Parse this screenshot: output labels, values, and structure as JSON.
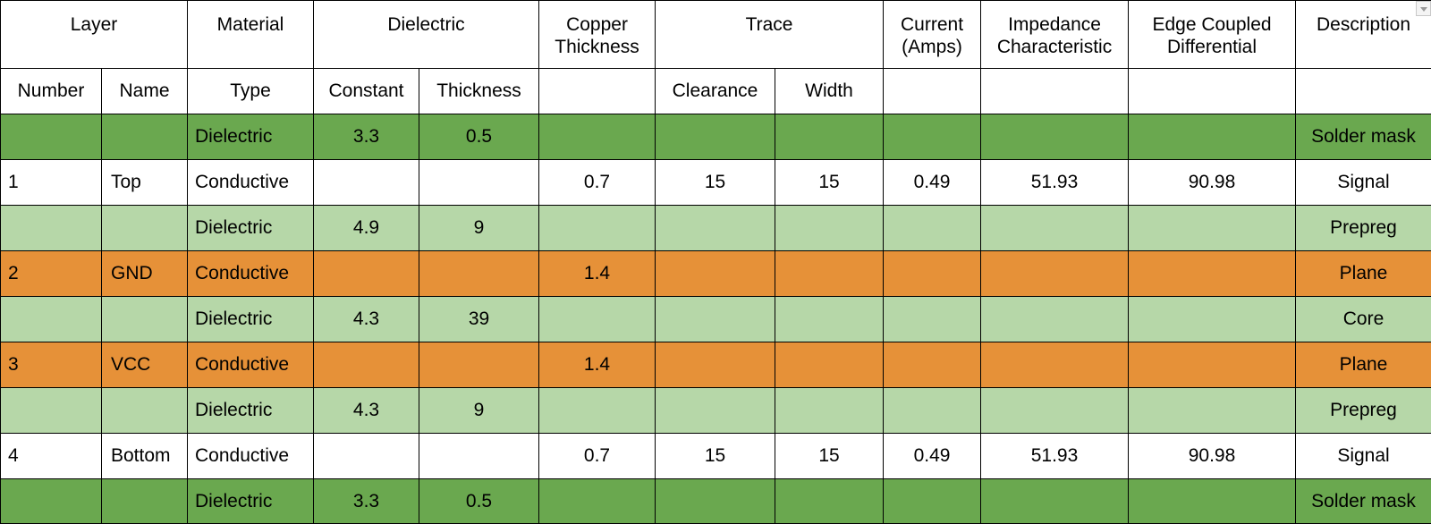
{
  "colors": {
    "dark_green": "#6aa84f",
    "light_green": "#b6d7a8",
    "orange": "#e69138",
    "white": "#ffffff"
  },
  "header": {
    "layer": "Layer",
    "material": "Material",
    "dielectric": "Dielectric",
    "copper_thickness": "Copper Thickness",
    "trace": "Trace",
    "current": "Current (Amps)",
    "impedance": "Impedance Characteristic",
    "edge_coupled": "Edge Coupled Differential",
    "description": "Description"
  },
  "subheader": {
    "number": "Number",
    "name": "Name",
    "type": "Type",
    "constant": "Constant",
    "thickness": "Thickness",
    "clearance": "Clearance",
    "width": "Width"
  },
  "rows": [
    {
      "color": "dark_green",
      "number": "",
      "name": "",
      "type": "Dielectric",
      "constant": "3.3",
      "thickness": "0.5",
      "copper": "",
      "clearance": "",
      "width": "",
      "current": "",
      "impedance": "",
      "edge": "",
      "description": "Solder mask"
    },
    {
      "color": "white",
      "number": "1",
      "name": "Top",
      "type": "Conductive",
      "constant": "",
      "thickness": "",
      "copper": "0.7",
      "clearance": "15",
      "width": "15",
      "current": "0.49",
      "impedance": "51.93",
      "edge": "90.98",
      "description": "Signal"
    },
    {
      "color": "light_green",
      "number": "",
      "name": "",
      "type": "Dielectric",
      "constant": "4.9",
      "thickness": "9",
      "copper": "",
      "clearance": "",
      "width": "",
      "current": "",
      "impedance": "",
      "edge": "",
      "description": "Prepreg"
    },
    {
      "color": "orange",
      "number": "2",
      "name": "GND",
      "type": "Conductive",
      "constant": "",
      "thickness": "",
      "copper": "1.4",
      "clearance": "",
      "width": "",
      "current": "",
      "impedance": "",
      "edge": "",
      "description": "Plane"
    },
    {
      "color": "light_green",
      "number": "",
      "name": "",
      "type": "Dielectric",
      "constant": "4.3",
      "thickness": "39",
      "copper": "",
      "clearance": "",
      "width": "",
      "current": "",
      "impedance": "",
      "edge": "",
      "description": "Core"
    },
    {
      "color": "orange",
      "number": "3",
      "name": "VCC",
      "type": "Conductive",
      "constant": "",
      "thickness": "",
      "copper": "1.4",
      "clearance": "",
      "width": "",
      "current": "",
      "impedance": "",
      "edge": "",
      "description": "Plane"
    },
    {
      "color": "light_green",
      "number": "",
      "name": "",
      "type": "Dielectric",
      "constant": "4.3",
      "thickness": "9",
      "copper": "",
      "clearance": "",
      "width": "",
      "current": "",
      "impedance": "",
      "edge": "",
      "description": "Prepreg"
    },
    {
      "color": "white",
      "number": "4",
      "name": "Bottom",
      "type": "Conductive",
      "constant": "",
      "thickness": "",
      "copper": "0.7",
      "clearance": "15",
      "width": "15",
      "current": "0.49",
      "impedance": "51.93",
      "edge": "90.98",
      "description": "Signal"
    },
    {
      "color": "dark_green",
      "number": "",
      "name": "",
      "type": "Dielectric",
      "constant": "3.3",
      "thickness": "0.5",
      "copper": "",
      "clearance": "",
      "width": "",
      "current": "",
      "impedance": "",
      "edge": "",
      "description": "Solder mask"
    }
  ]
}
